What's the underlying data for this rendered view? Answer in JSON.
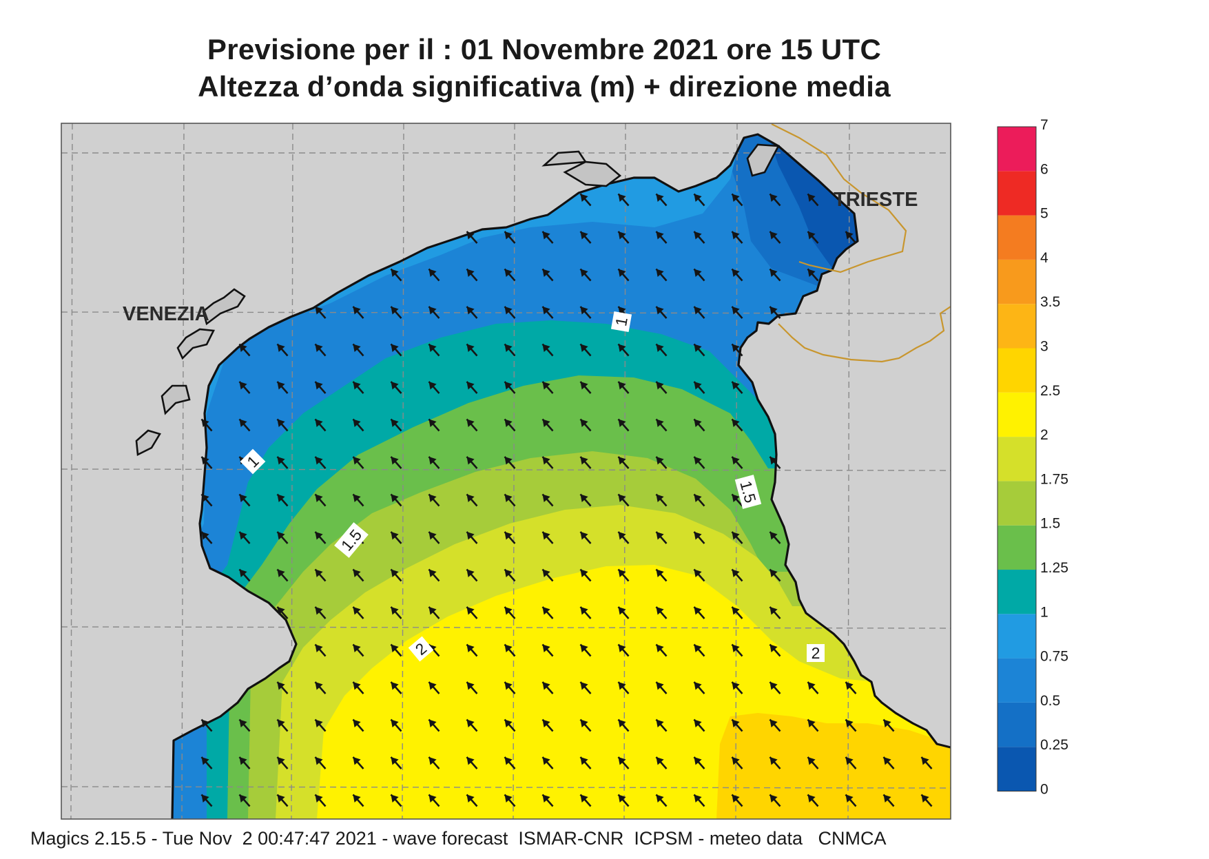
{
  "header": {
    "title_line1": "Previsione per il  :  01 Novembre  2021   ore 15 UTC",
    "title_line2": "Altezza d’onda significativa (m) + direzione media"
  },
  "map": {
    "cities": [
      {
        "name": "VENEZIA"
      },
      {
        "name": "TRIESTE"
      }
    ],
    "contour_labels": [
      "1",
      "1",
      "1.5",
      "1.5",
      "2",
      "2"
    ],
    "arrow_direction": "north-west",
    "colors": {
      "land": "#d0d0d0",
      "coast": "#111111",
      "border": "#c8962e",
      "grid": "#8a8a8a"
    }
  },
  "legend": {
    "levels": [
      {
        "label": "0",
        "color": "#0a57b0"
      },
      {
        "label": "0.25",
        "color": "#1470c6"
      },
      {
        "label": "0.5",
        "color": "#1c84d6"
      },
      {
        "label": "0.75",
        "color": "#219be2"
      },
      {
        "label": "1",
        "color": "#00a9a6"
      },
      {
        "label": "1.25",
        "color": "#6abf4b"
      },
      {
        "label": "1.5",
        "color": "#a6cc3a"
      },
      {
        "label": "1.75",
        "color": "#d5e02a"
      },
      {
        "label": "2",
        "color": "#fff200"
      },
      {
        "label": "2.5",
        "color": "#ffd500"
      },
      {
        "label": "3",
        "color": "#fdb515"
      },
      {
        "label": "3.5",
        "color": "#f89a1c"
      },
      {
        "label": "4",
        "color": "#f47c20"
      },
      {
        "label": "5",
        "color": "#ee2a24"
      },
      {
        "label": "6",
        "color": "#ec1c5a"
      },
      {
        "label": "7",
        "color": ""
      }
    ]
  },
  "footer": {
    "text": "Magics 2.15.5 - Tue Nov  2 00:47:47 2021 - wave forecast  ISMAR-CNR  ICPSM - meteo data   CNMCA"
  }
}
